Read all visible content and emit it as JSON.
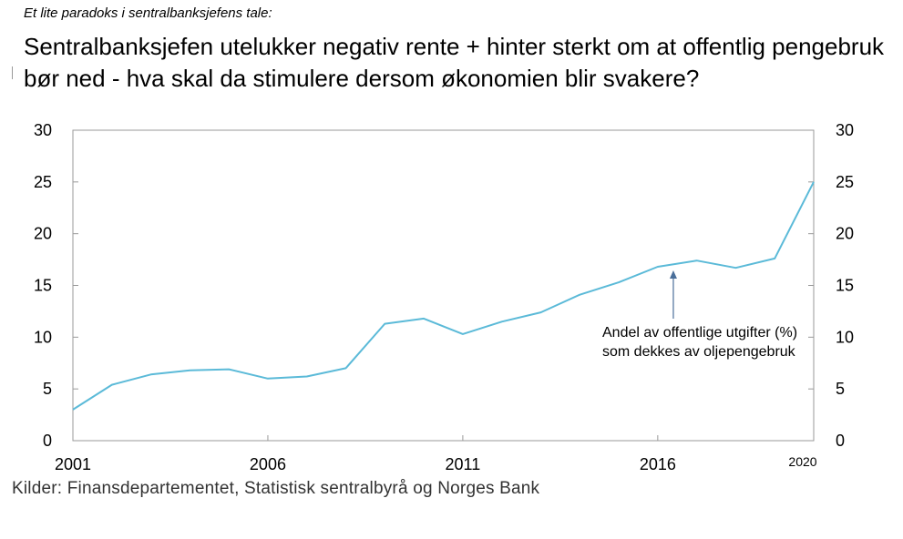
{
  "kicker": "Et lite paradoks i sentralbanksjefens tale:",
  "headline": "Sentralbanksjefen utelukker negativ rente + hinter sterkt om at offentlig pengebruk bør ned - hva skal da stimulere dersom økonomien blir svakere?",
  "source": "Kilder: Finansdepartementet, Statistisk sentralbyrå og Norges Bank",
  "colors": {
    "line": "#5bbad8",
    "axis": "#999999",
    "grid": "#d9d9d9",
    "arrow": "#4a6f9a"
  },
  "chart_data": {
    "type": "line",
    "title": "",
    "xlabel": "",
    "ylabel": "",
    "xlim": [
      2001,
      2020
    ],
    "ylim": [
      0,
      30
    ],
    "yticks": [
      0,
      5,
      10,
      15,
      20,
      25,
      30
    ],
    "xticks": [
      {
        "value": 2001,
        "label": "2001",
        "small": false
      },
      {
        "value": 2006,
        "label": "2006",
        "small": false
      },
      {
        "value": 2011,
        "label": "2011",
        "small": false
      },
      {
        "value": 2016,
        "label": "2016",
        "small": false
      },
      {
        "value": 2020,
        "label": "2020",
        "small": true
      }
    ],
    "grid": false,
    "dual_y_axis": true,
    "series": [
      {
        "x": [
          2001,
          2002,
          2003,
          2004,
          2005,
          2006,
          2007,
          2008,
          2009,
          2010,
          2011,
          2012,
          2013,
          2014,
          2015,
          2016,
          2017,
          2018,
          2019,
          2020
        ],
        "values": [
          3.0,
          5.4,
          6.4,
          6.8,
          6.9,
          6.0,
          6.2,
          7.0,
          11.3,
          11.8,
          10.3,
          11.5,
          12.4,
          14.1,
          15.3,
          16.8,
          17.4,
          16.7,
          17.6,
          25.0
        ]
      }
    ],
    "annotation": {
      "text": "Andel av offentlige utgifter (%) som dekkes av oljepengebruk",
      "arrow_target": {
        "x": 2016.4,
        "y": 16.8
      }
    }
  }
}
